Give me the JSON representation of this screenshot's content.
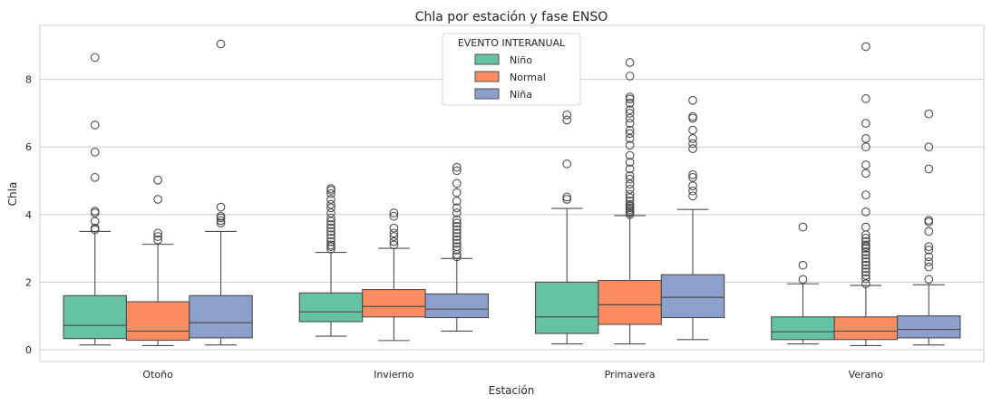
{
  "chart_data": {
    "type": "box",
    "title": "Chla por estación y fase ENSO",
    "xlabel": "Estación",
    "ylabel": "Chla",
    "categories": [
      "Otoño",
      "Invierno",
      "Primavera",
      "Verano"
    ],
    "yticks": [
      0,
      2,
      4,
      6,
      8
    ],
    "ylim": [
      -0.35,
      9.6
    ],
    "grid": "horizontal",
    "legend": {
      "title": "EVENTO INTERANUAL",
      "placement": "top-center"
    },
    "series": [
      {
        "name": "Niño",
        "color": "#66c2a5",
        "boxes": [
          {
            "whislo": 0.14,
            "q1": 0.33,
            "med": 0.72,
            "q3": 1.6,
            "whishi": 3.5,
            "fliers": [
              3.55,
              3.6,
              3.8,
              4.05,
              4.1,
              5.1,
              5.85,
              6.65,
              8.65
            ]
          },
          {
            "whislo": 0.4,
            "q1": 0.83,
            "med": 1.12,
            "q3": 1.68,
            "whishi": 2.88,
            "fliers": [
              2.98,
              3.05,
              3.1,
              3.2,
              3.3,
              3.4,
              3.5,
              3.6,
              3.7,
              3.8,
              3.9,
              4.05,
              4.2,
              4.3,
              4.45,
              4.62,
              4.72,
              4.77
            ]
          },
          {
            "whislo": 0.17,
            "q1": 0.48,
            "med": 0.97,
            "q3": 2.0,
            "whishi": 4.18,
            "fliers": [
              4.45,
              4.52,
              5.5,
              6.8,
              6.95
            ]
          },
          {
            "whislo": 0.17,
            "q1": 0.3,
            "med": 0.53,
            "q3": 0.97,
            "whishi": 1.95,
            "fliers": [
              2.08,
              2.5,
              3.63
            ]
          }
        ]
      },
      {
        "name": "Normal",
        "color": "#fc8d62",
        "boxes": [
          {
            "whislo": 0.12,
            "q1": 0.28,
            "med": 0.55,
            "q3": 1.42,
            "whishi": 3.12,
            "fliers": [
              3.25,
              3.35,
              3.45,
              4.45,
              5.02
            ]
          },
          {
            "whislo": 0.27,
            "q1": 0.97,
            "med": 1.28,
            "q3": 1.78,
            "whishi": 3.0,
            "fliers": [
              3.1,
              3.2,
              3.35,
              3.45,
              3.6,
              3.95,
              4.05
            ]
          },
          {
            "whislo": 0.17,
            "q1": 0.75,
            "med": 1.33,
            "q3": 2.05,
            "whishi": 3.97,
            "fliers": [
              4.0,
              4.05,
              4.1,
              4.15,
              4.2,
              4.25,
              4.3,
              4.4,
              4.5,
              4.6,
              4.75,
              4.9,
              5.05,
              5.15,
              5.35,
              5.55,
              5.75,
              6.05,
              6.25,
              6.4,
              6.5,
              6.7,
              6.85,
              7.0,
              7.1,
              7.3,
              7.42,
              7.48,
              8.1,
              8.5
            ]
          },
          {
            "whislo": 0.12,
            "q1": 0.3,
            "med": 0.55,
            "q3": 0.97,
            "whishi": 1.9,
            "fliers": [
              1.95,
              2.1,
              2.2,
              2.3,
              2.4,
              2.5,
              2.6,
              2.7,
              2.8,
              2.9,
              3.0,
              3.05,
              3.1,
              3.2,
              3.3,
              3.4,
              3.63,
              4.08,
              4.58,
              5.22,
              5.47,
              6.0,
              6.25,
              6.7,
              7.43,
              8.97
            ]
          }
        ]
      },
      {
        "name": "Niña",
        "color": "#8da0cb",
        "boxes": [
          {
            "whislo": 0.14,
            "q1": 0.35,
            "med": 0.8,
            "q3": 1.6,
            "whishi": 3.5,
            "fliers": [
              3.75,
              3.82,
              3.9,
              3.95,
              4.22,
              9.05
            ]
          },
          {
            "whislo": 0.55,
            "q1": 0.95,
            "med": 1.2,
            "q3": 1.65,
            "whishi": 2.7,
            "fliers": [
              2.75,
              2.82,
              2.95,
              3.05,
              3.15,
              3.25,
              3.35,
              3.45,
              3.55,
              3.65,
              3.75,
              3.85,
              4.05,
              4.2,
              4.4,
              4.65,
              4.92,
              5.3,
              5.4
            ]
          },
          {
            "whislo": 0.3,
            "q1": 0.95,
            "med": 1.55,
            "q3": 2.22,
            "whishi": 4.15,
            "fliers": [
              4.55,
              4.7,
              4.85,
              5.1,
              5.18,
              5.95,
              6.1,
              6.25,
              6.5,
              6.85,
              6.9,
              7.38
            ]
          },
          {
            "whislo": 0.14,
            "q1": 0.35,
            "med": 0.6,
            "q3": 1.0,
            "whishi": 1.92,
            "fliers": [
              2.08,
              2.45,
              2.6,
              2.75,
              2.95,
              3.05,
              3.5,
              3.78,
              3.83,
              5.35,
              6.0,
              6.98
            ]
          }
        ]
      }
    ]
  }
}
